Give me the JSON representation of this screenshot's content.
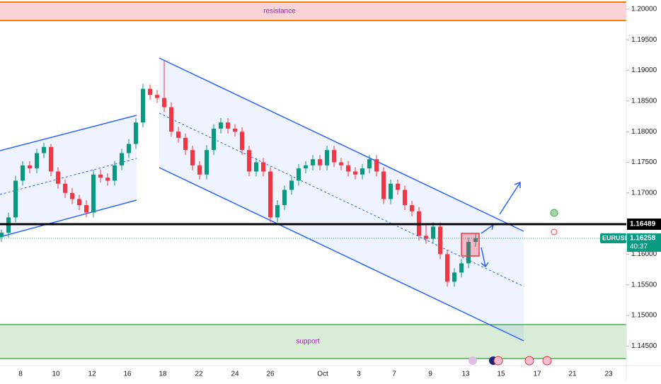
{
  "chart_data": {
    "type": "candlestick",
    "symbol": "EURUSD",
    "last_price": {
      "value": 1.16258,
      "label": "1.16258"
    },
    "countdown": "40:37",
    "level": {
      "value": 1.16489,
      "label": "1.16489"
    },
    "zones": {
      "resistance": "resistance",
      "support": "support"
    },
    "ylim": [
      1.1418,
      1.2015
    ],
    "yticks": [
      {
        "value": 1.2,
        "label": "1.20000"
      },
      {
        "value": 1.195,
        "label": "1.19500"
      },
      {
        "value": 1.19,
        "label": "1.19000"
      },
      {
        "value": 1.185,
        "label": "1.18500"
      },
      {
        "value": 1.18,
        "label": "1.18000"
      },
      {
        "value": 1.175,
        "label": "1.17500"
      },
      {
        "value": 1.17,
        "label": "1.17000"
      },
      {
        "value": 1.16,
        "label": "1.16000"
      },
      {
        "value": 1.155,
        "label": "1.15500"
      },
      {
        "value": 1.15,
        "label": "1.15000"
      },
      {
        "value": 1.145,
        "label": "1.14500"
      }
    ],
    "xticks": [
      "8",
      "10",
      "12",
      "16",
      "18",
      "22",
      "24",
      "26",
      "Oct",
      "3",
      "7",
      "9",
      "13",
      "15",
      "17",
      "21",
      "23"
    ],
    "up_color": "#089981",
    "down_color": "#f23645",
    "open": [
      1.1628,
      1.1635,
      1.166,
      1.172,
      1.1745,
      1.174,
      1.1765,
      1.1775,
      1.1735,
      1.1715,
      1.17,
      1.169,
      1.168,
      1.1668,
      1.173,
      1.1725,
      1.172,
      1.1745,
      1.1765,
      1.178,
      1.1815,
      1.187,
      1.186,
      1.1855,
      1.184,
      1.18,
      1.179,
      1.177,
      1.1745,
      1.173,
      1.177,
      1.1805,
      1.1815,
      1.1805,
      1.18,
      1.177,
      1.1735,
      1.175,
      1.1735,
      1.166,
      1.168,
      1.1705,
      1.172,
      1.174,
      1.1745,
      1.1755,
      1.1745,
      1.177,
      1.175,
      1.1745,
      1.1735,
      1.173,
      1.174,
      1.1755,
      1.1735,
      1.169,
      1.1715,
      1.1705,
      1.168,
      1.167,
      1.163,
      1.1625,
      1.1645,
      1.16,
      1.1555,
      1.157,
      1.1585,
      1.162
    ],
    "high": [
      1.164,
      1.1668,
      1.1728,
      1.1752,
      1.1752,
      1.1772,
      1.1782,
      1.178,
      1.1742,
      1.1722,
      1.1708,
      1.1697,
      1.1688,
      1.1738,
      1.1738,
      1.1732,
      1.1752,
      1.1772,
      1.1788,
      1.1822,
      1.1878,
      1.1877,
      1.1868,
      1.1916,
      1.1848,
      1.1808,
      1.1797,
      1.1777,
      1.1752,
      1.1778,
      1.1812,
      1.1822,
      1.1822,
      1.1812,
      1.1807,
      1.1777,
      1.1757,
      1.1757,
      1.1742,
      1.1688,
      1.1712,
      1.1727,
      1.1747,
      1.1752,
      1.1762,
      1.1762,
      1.1777,
      1.1777,
      1.1757,
      1.1752,
      1.1742,
      1.1747,
      1.1762,
      1.1762,
      1.1742,
      1.1722,
      1.1722,
      1.1712,
      1.1687,
      1.1677,
      1.165,
      1.1652,
      1.1652,
      1.1607,
      1.1577,
      1.1592,
      1.1627,
      1.1633
    ],
    "low": [
      1.162,
      1.1627,
      1.1652,
      1.1712,
      1.1732,
      1.1732,
      1.1757,
      1.1727,
      1.1707,
      1.1692,
      1.1682,
      1.1672,
      1.166,
      1.166,
      1.1717,
      1.1712,
      1.1712,
      1.1737,
      1.1757,
      1.1772,
      1.1807,
      1.1852,
      1.1847,
      1.1832,
      1.1792,
      1.1782,
      1.1762,
      1.1737,
      1.1722,
      1.1722,
      1.1762,
      1.1797,
      1.1797,
      1.1792,
      1.1762,
      1.1727,
      1.1727,
      1.1727,
      1.1652,
      1.1652,
      1.1672,
      1.1697,
      1.1712,
      1.1732,
      1.1737,
      1.1737,
      1.1737,
      1.1742,
      1.1737,
      1.1727,
      1.1722,
      1.1722,
      1.1732,
      1.1727,
      1.1682,
      1.1682,
      1.1697,
      1.1672,
      1.1662,
      1.1622,
      1.1617,
      1.1617,
      1.1592,
      1.1547,
      1.1547,
      1.1562,
      1.1577,
      1.1612
    ],
    "close": [
      1.1635,
      1.166,
      1.172,
      1.1745,
      1.174,
      1.1765,
      1.1775,
      1.1735,
      1.1715,
      1.17,
      1.169,
      1.168,
      1.1668,
      1.173,
      1.1725,
      1.172,
      1.1745,
      1.1765,
      1.178,
      1.1815,
      1.187,
      1.186,
      1.1855,
      1.184,
      1.18,
      1.179,
      1.177,
      1.1745,
      1.173,
      1.177,
      1.1805,
      1.1815,
      1.1805,
      1.18,
      1.177,
      1.1735,
      1.175,
      1.1735,
      1.166,
      1.168,
      1.1705,
      1.172,
      1.174,
      1.1745,
      1.1755,
      1.1745,
      1.177,
      1.175,
      1.1745,
      1.1735,
      1.173,
      1.174,
      1.1755,
      1.1735,
      1.169,
      1.1715,
      1.1705,
      1.168,
      1.167,
      1.163,
      1.1625,
      1.1645,
      1.16,
      1.1555,
      1.157,
      1.1585,
      1.162,
      1.1626
    ]
  }
}
